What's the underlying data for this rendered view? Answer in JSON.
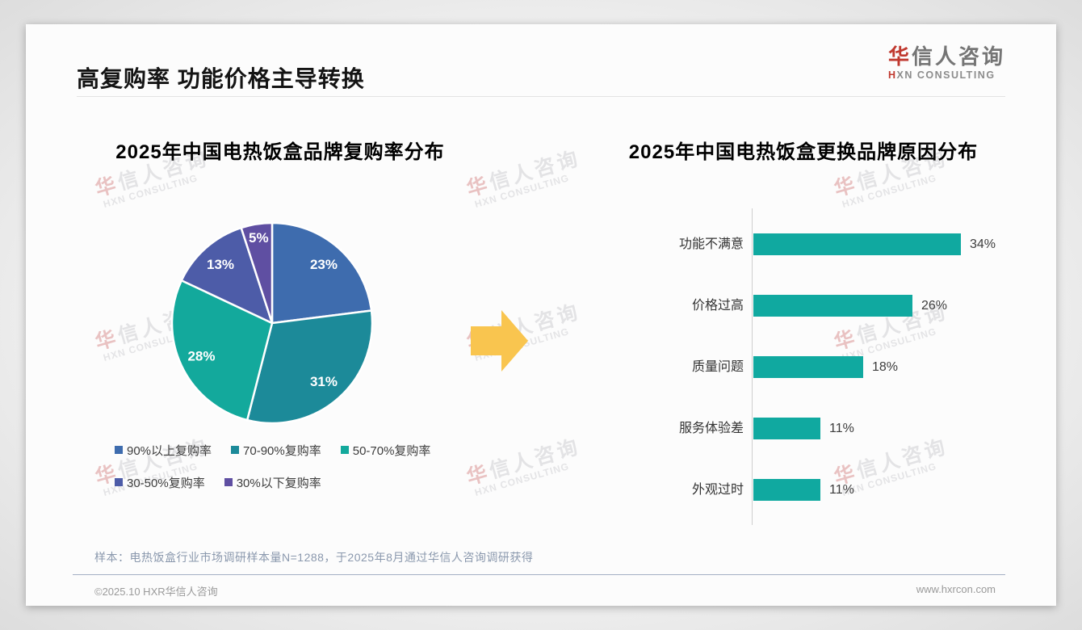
{
  "header": {
    "title": "高复购率 功能价格主导转换",
    "logo": {
      "cn_accent": "华",
      "cn_rest": "信人咨询",
      "en_accent": "H",
      "en_rest": "XN CONSULTING"
    }
  },
  "watermark": {
    "line1_accent": "华",
    "line1_rest": "信人咨询",
    "line2": "HXN CONSULTING"
  },
  "chart_data": [
    {
      "type": "pie",
      "title": "2025年中国电热饭盒品牌复购率分布",
      "labels": [
        "90%以上复购率",
        "70-90%复购率",
        "50-70%复购率",
        "30-50%复购率",
        "30%以下复购率"
      ],
      "values": [
        23,
        31,
        28,
        13,
        5
      ],
      "data_labels": [
        "23%",
        "31%",
        "28%",
        "13%",
        "5%"
      ],
      "colors": [
        "#3E6CAE",
        "#1C8A99",
        "#13A99C",
        "#4D5CA8",
        "#5F4FA2"
      ],
      "start_angle_deg": 0,
      "direction": "clockwise",
      "slice_border_color": "#ffffff",
      "legend_position": "bottom",
      "legend_rows": [
        [
          0,
          1,
          2
        ],
        [
          3,
          4
        ]
      ]
    },
    {
      "type": "bar",
      "orientation": "horizontal",
      "title": "2025年中国电热饭盒更换品牌原因分布",
      "categories": [
        "功能不满意",
        "价格过高",
        "质量问题",
        "服务体验差",
        "外观过时"
      ],
      "values": [
        34,
        26,
        18,
        11,
        11
      ],
      "data_labels": [
        "34%",
        "26%",
        "18%",
        "11%",
        "11%"
      ],
      "bar_color": "#10A9A0",
      "xlim": [
        0,
        40
      ],
      "grid": false,
      "value_labels_position": "end"
    }
  ],
  "transition_arrow": {
    "color": "#F9C54F",
    "direction": "right"
  },
  "footnote": "样本：电热饭盒行业市场调研样本量N=1288，于2025年8月通过华信人咨询调研获得",
  "footer": {
    "left": "©2025.10 HXR华信人咨询",
    "right": "www.hxrcon.com"
  }
}
